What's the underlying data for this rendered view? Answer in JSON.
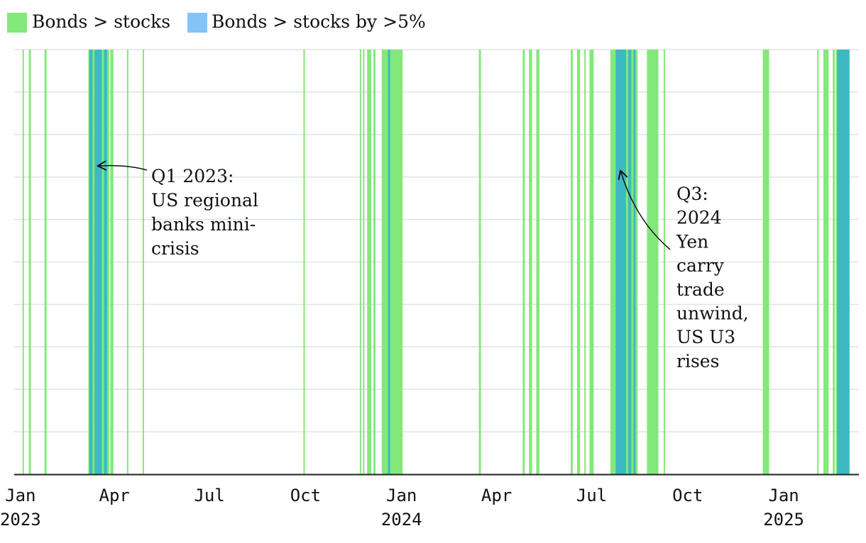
{
  "chart_data": {
    "type": "bar",
    "title": "",
    "xlabel": "",
    "ylabel": "",
    "x_range": [
      "2022-12-26",
      "2025-03-14"
    ],
    "grid": true,
    "legend_position": "top-left",
    "colors": {
      "bonds_gt_stocks": "#83e87a",
      "bonds_gt_stocks_5pct": "#3db9c4",
      "legend_5pct_swatch": "#82c4f8",
      "grid": "#e2e2e2",
      "axis": "#222222"
    },
    "legend": [
      {
        "key": "bonds_gt_stocks",
        "label": "Bonds > stocks"
      },
      {
        "key": "bonds_gt_stocks_5pct",
        "label": "Bonds > stocks by >5%"
      }
    ],
    "x_ticks": [
      {
        "date": "2023-01-01",
        "label": "Jan",
        "year": "2023"
      },
      {
        "date": "2023-04-01",
        "label": "Apr"
      },
      {
        "date": "2023-07-01",
        "label": "Jul"
      },
      {
        "date": "2023-10-01",
        "label": "Oct"
      },
      {
        "date": "2024-01-01",
        "label": "Jan",
        "year": "2024"
      },
      {
        "date": "2024-04-01",
        "label": "Apr"
      },
      {
        "date": "2024-07-01",
        "label": "Jul"
      },
      {
        "date": "2024-10-01",
        "label": "Oct"
      },
      {
        "date": "2025-01-01",
        "label": "Jan",
        "year": "2025"
      }
    ],
    "series": [
      {
        "key": "bonds_gt_stocks",
        "periods": [
          [
            "2023-01-03",
            "2023-01-04"
          ],
          [
            "2023-01-09",
            "2023-01-11"
          ],
          [
            "2023-01-24",
            "2023-01-26"
          ],
          [
            "2023-03-07",
            "2023-03-27"
          ],
          [
            "2023-03-28",
            "2023-03-31"
          ],
          [
            "2023-04-13",
            "2023-04-14"
          ],
          [
            "2023-04-28",
            "2023-04-29"
          ],
          [
            "2023-09-29",
            "2023-09-30"
          ],
          [
            "2023-11-22",
            "2023-11-23"
          ],
          [
            "2023-11-25",
            "2023-11-26"
          ],
          [
            "2023-11-29",
            "2023-12-03"
          ],
          [
            "2023-12-05",
            "2023-12-07"
          ],
          [
            "2023-12-13",
            "2024-01-02"
          ],
          [
            "2024-03-15",
            "2024-03-17"
          ],
          [
            "2024-04-26",
            "2024-04-28"
          ],
          [
            "2024-05-02",
            "2024-05-05"
          ],
          [
            "2024-05-09",
            "2024-05-12"
          ],
          [
            "2024-06-11",
            "2024-06-13"
          ],
          [
            "2024-06-17",
            "2024-06-20"
          ],
          [
            "2024-06-24",
            "2024-06-25"
          ],
          [
            "2024-06-29",
            "2024-07-03"
          ],
          [
            "2024-07-19",
            "2024-08-14"
          ],
          [
            "2024-08-23",
            "2024-09-03"
          ],
          [
            "2024-09-08",
            "2024-09-09"
          ],
          [
            "2024-12-12",
            "2024-12-18"
          ],
          [
            "2025-02-02",
            "2025-02-03"
          ],
          [
            "2025-02-08",
            "2025-02-13"
          ],
          [
            "2025-02-17",
            "2025-02-19"
          ],
          [
            "2025-02-20",
            "2025-03-05"
          ]
        ]
      },
      {
        "key": "bonds_gt_stocks_5pct",
        "periods": [
          [
            "2023-03-08",
            "2023-03-11"
          ],
          [
            "2023-03-13",
            "2023-03-20"
          ],
          [
            "2023-03-22",
            "2023-03-25"
          ],
          [
            "2023-12-19",
            "2023-12-21"
          ],
          [
            "2024-07-24",
            "2024-08-03"
          ],
          [
            "2024-08-05",
            "2024-08-08"
          ],
          [
            "2024-08-10",
            "2024-08-12"
          ],
          [
            "2025-02-21",
            "2025-03-05"
          ]
        ]
      }
    ],
    "annotations": [
      {
        "lines": [
          "Q1 2023:",
          "US regional",
          "banks mini-",
          "crisis"
        ],
        "target_date": "2023-03-17"
      },
      {
        "lines": [
          "Q3:",
          "2024",
          "Yen",
          "carry",
          "trade",
          "unwind,",
          "US U3",
          "rises"
        ],
        "target_date": "2024-07-29"
      }
    ]
  }
}
